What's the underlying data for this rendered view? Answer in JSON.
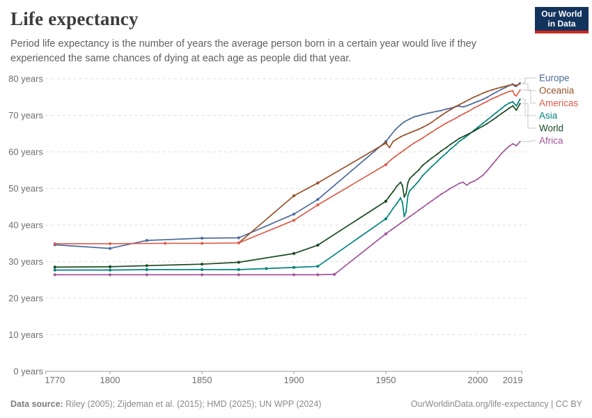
{
  "header": {
    "title": "Life expectancy",
    "subtitle": "Period life expectancy is the number of years the average person born in a certain year would live if they experienced the same chances of dying at each age as people did that year."
  },
  "logo": {
    "line1": "Our World",
    "line2": "in Data",
    "bg_color": "#12335C",
    "accent_color": "#CE261E"
  },
  "footer": {
    "source_label": "Data source:",
    "source_text": " Riley (2005); Zijdeman et al. (2015); HMD (2025); UN WPP (2024)",
    "link_text": "OurWorldinData.org/life-expectancy | CC BY"
  },
  "chart_data": {
    "type": "line",
    "title": "Life expectancy",
    "xlabel": "",
    "ylabel": "years",
    "xlim": [
      1765,
      2024
    ],
    "ylim": [
      0,
      85
    ],
    "grid": true,
    "legend_position": "right",
    "x_ticks": [
      1770,
      1800,
      1850,
      1900,
      1950,
      2000,
      2019
    ],
    "y_ticks": [
      {
        "value": 0,
        "label": "0 years"
      },
      {
        "value": 10,
        "label": "10 years"
      },
      {
        "value": 20,
        "label": "20 years"
      },
      {
        "value": 30,
        "label": "30 years"
      },
      {
        "value": 40,
        "label": "40 years"
      },
      {
        "value": 50,
        "label": "50 years"
      },
      {
        "value": 60,
        "label": "60 years"
      },
      {
        "value": 70,
        "label": "70 years"
      },
      {
        "value": 80,
        "label": "80 years"
      }
    ],
    "colors": {
      "grid": "#dedede",
      "axis": "#9a9a9a",
      "tick_label": "#6e6e6e",
      "connector": "#c8c8c8"
    },
    "series": [
      {
        "name": "Europe",
        "color": "#4C6A9C",
        "points": [
          [
            1770,
            34.6
          ],
          [
            1800,
            33.6
          ],
          [
            1820,
            35.8
          ],
          [
            1850,
            36.4
          ],
          [
            1870,
            36.5
          ],
          [
            1900,
            43.0
          ],
          [
            1913,
            47.0
          ],
          [
            1950,
            62.8
          ],
          [
            1952,
            64.1
          ],
          [
            1955,
            66.0
          ],
          [
            1958,
            67.4
          ],
          [
            1960,
            68.2
          ],
          [
            1963,
            69.0
          ],
          [
            1965,
            69.5
          ],
          [
            1968,
            69.9
          ],
          [
            1970,
            70.2
          ],
          [
            1973,
            70.6
          ],
          [
            1975,
            70.8
          ],
          [
            1978,
            71.1
          ],
          [
            1980,
            71.3
          ],
          [
            1983,
            71.7
          ],
          [
            1985,
            71.9
          ],
          [
            1988,
            72.4
          ],
          [
            1990,
            72.5
          ],
          [
            1992,
            72.3
          ],
          [
            1994,
            72.6
          ],
          [
            1996,
            73.0
          ],
          [
            1998,
            73.4
          ],
          [
            2000,
            73.8
          ],
          [
            2003,
            74.4
          ],
          [
            2005,
            74.9
          ],
          [
            2008,
            75.8
          ],
          [
            2010,
            76.3
          ],
          [
            2013,
            77.1
          ],
          [
            2015,
            77.6
          ],
          [
            2017,
            78.1
          ],
          [
            2019,
            78.6
          ],
          [
            2020,
            78.0
          ],
          [
            2021,
            77.9
          ],
          [
            2023,
            78.9
          ]
        ]
      },
      {
        "name": "Oceania",
        "color": "#9A5129",
        "points": [
          [
            1870,
            35.1
          ],
          [
            1900,
            48.0
          ],
          [
            1913,
            51.5
          ],
          [
            1950,
            62.4
          ],
          [
            1952,
            61.2
          ],
          [
            1954,
            62.9
          ],
          [
            1956,
            63.5
          ],
          [
            1958,
            64.1
          ],
          [
            1960,
            64.6
          ],
          [
            1963,
            65.2
          ],
          [
            1965,
            65.6
          ],
          [
            1968,
            66.2
          ],
          [
            1970,
            66.7
          ],
          [
            1973,
            67.5
          ],
          [
            1975,
            68.1
          ],
          [
            1978,
            69.2
          ],
          [
            1980,
            69.9
          ],
          [
            1983,
            70.9
          ],
          [
            1985,
            71.5
          ],
          [
            1988,
            72.4
          ],
          [
            1990,
            72.9
          ],
          [
            1993,
            73.7
          ],
          [
            1995,
            74.2
          ],
          [
            1998,
            75.0
          ],
          [
            2000,
            75.4
          ],
          [
            2003,
            76.1
          ],
          [
            2005,
            76.5
          ],
          [
            2008,
            77.0
          ],
          [
            2010,
            77.3
          ],
          [
            2013,
            77.7
          ],
          [
            2015,
            77.9
          ],
          [
            2017,
            78.2
          ],
          [
            2019,
            78.4
          ],
          [
            2021,
            78.2
          ],
          [
            2023,
            78.6
          ]
        ]
      },
      {
        "name": "Americas",
        "color": "#DE5C49",
        "points": [
          [
            1770,
            34.9
          ],
          [
            1800,
            34.9
          ],
          [
            1830,
            35.0
          ],
          [
            1850,
            35.0
          ],
          [
            1870,
            35.1
          ],
          [
            1900,
            41.3
          ],
          [
            1913,
            45.5
          ],
          [
            1950,
            56.5
          ],
          [
            1953,
            57.9
          ],
          [
            1955,
            58.7
          ],
          [
            1958,
            59.8
          ],
          [
            1960,
            60.5
          ],
          [
            1963,
            61.6
          ],
          [
            1965,
            62.3
          ],
          [
            1968,
            63.2
          ],
          [
            1970,
            63.8
          ],
          [
            1973,
            64.8
          ],
          [
            1975,
            65.4
          ],
          [
            1978,
            66.4
          ],
          [
            1980,
            67.0
          ],
          [
            1983,
            67.9
          ],
          [
            1985,
            68.4
          ],
          [
            1988,
            69.2
          ],
          [
            1990,
            69.8
          ],
          [
            1993,
            70.6
          ],
          [
            1995,
            71.1
          ],
          [
            1998,
            72.0
          ],
          [
            2000,
            72.5
          ],
          [
            2003,
            73.3
          ],
          [
            2005,
            73.8
          ],
          [
            2008,
            74.6
          ],
          [
            2010,
            75.0
          ],
          [
            2013,
            75.7
          ],
          [
            2015,
            76.1
          ],
          [
            2017,
            76.5
          ],
          [
            2019,
            76.7
          ],
          [
            2020,
            75.6
          ],
          [
            2021,
            75.3
          ],
          [
            2023,
            76.9
          ]
        ]
      },
      {
        "name": "Asia",
        "color": "#00847E",
        "points": [
          [
            1770,
            27.7
          ],
          [
            1800,
            27.7
          ],
          [
            1820,
            27.8
          ],
          [
            1850,
            27.8
          ],
          [
            1870,
            27.8
          ],
          [
            1885,
            28.1
          ],
          [
            1900,
            28.4
          ],
          [
            1913,
            28.7
          ],
          [
            1950,
            41.7
          ],
          [
            1952,
            43.1
          ],
          [
            1954,
            44.6
          ],
          [
            1956,
            45.9
          ],
          [
            1958,
            47.4
          ],
          [
            1959,
            46.2
          ],
          [
            1960,
            42.3
          ],
          [
            1961,
            43.6
          ],
          [
            1962,
            48.1
          ],
          [
            1963,
            49.4
          ],
          [
            1965,
            50.4
          ],
          [
            1968,
            52.1
          ],
          [
            1970,
            53.5
          ],
          [
            1973,
            55.0
          ],
          [
            1975,
            56.0
          ],
          [
            1978,
            57.4
          ],
          [
            1980,
            58.4
          ],
          [
            1983,
            59.7
          ],
          [
            1985,
            60.7
          ],
          [
            1988,
            61.9
          ],
          [
            1990,
            62.9
          ],
          [
            1993,
            63.9
          ],
          [
            1995,
            64.7
          ],
          [
            1998,
            65.9
          ],
          [
            2000,
            66.7
          ],
          [
            2003,
            67.9
          ],
          [
            2005,
            68.7
          ],
          [
            2008,
            69.9
          ],
          [
            2010,
            70.7
          ],
          [
            2013,
            71.9
          ],
          [
            2015,
            72.7
          ],
          [
            2017,
            73.3
          ],
          [
            2019,
            73.7
          ],
          [
            2021,
            72.6
          ],
          [
            2023,
            74.4
          ]
        ]
      },
      {
        "name": "World",
        "color": "#1A4B22",
        "points": [
          [
            1770,
            28.5
          ],
          [
            1800,
            28.6
          ],
          [
            1820,
            28.9
          ],
          [
            1850,
            29.3
          ],
          [
            1870,
            29.8
          ],
          [
            1900,
            32.2
          ],
          [
            1913,
            34.5
          ],
          [
            1950,
            46.5
          ],
          [
            1952,
            47.9
          ],
          [
            1954,
            49.2
          ],
          [
            1956,
            50.6
          ],
          [
            1958,
            51.7
          ],
          [
            1959,
            50.8
          ],
          [
            1960,
            47.7
          ],
          [
            1961,
            48.6
          ],
          [
            1962,
            51.6
          ],
          [
            1963,
            52.7
          ],
          [
            1965,
            53.7
          ],
          [
            1968,
            55.1
          ],
          [
            1970,
            56.3
          ],
          [
            1973,
            57.5
          ],
          [
            1975,
            58.3
          ],
          [
            1978,
            59.4
          ],
          [
            1980,
            60.2
          ],
          [
            1983,
            61.2
          ],
          [
            1985,
            62.0
          ],
          [
            1988,
            63.0
          ],
          [
            1990,
            63.7
          ],
          [
            1993,
            64.4
          ],
          [
            1995,
            64.9
          ],
          [
            1998,
            65.7
          ],
          [
            2000,
            66.3
          ],
          [
            2003,
            67.1
          ],
          [
            2005,
            67.7
          ],
          [
            2008,
            68.7
          ],
          [
            2010,
            69.4
          ],
          [
            2013,
            70.5
          ],
          [
            2015,
            71.2
          ],
          [
            2017,
            71.9
          ],
          [
            2019,
            72.6
          ],
          [
            2021,
            71.4
          ],
          [
            2023,
            73.2
          ]
        ]
      },
      {
        "name": "Africa",
        "color": "#A2559C",
        "points": [
          [
            1770,
            26.4
          ],
          [
            1800,
            26.4
          ],
          [
            1820,
            26.4
          ],
          [
            1850,
            26.4
          ],
          [
            1870,
            26.4
          ],
          [
            1900,
            26.4
          ],
          [
            1913,
            26.4
          ],
          [
            1922,
            26.5
          ],
          [
            1950,
            37.6
          ],
          [
            1953,
            38.7
          ],
          [
            1955,
            39.4
          ],
          [
            1958,
            40.5
          ],
          [
            1960,
            41.2
          ],
          [
            1963,
            42.3
          ],
          [
            1965,
            43.0
          ],
          [
            1968,
            44.1
          ],
          [
            1970,
            44.8
          ],
          [
            1973,
            45.9
          ],
          [
            1975,
            46.6
          ],
          [
            1978,
            47.7
          ],
          [
            1980,
            48.4
          ],
          [
            1983,
            49.3
          ],
          [
            1985,
            50.0
          ],
          [
            1988,
            50.8
          ],
          [
            1990,
            51.4
          ],
          [
            1992,
            51.7
          ],
          [
            1994,
            50.9
          ],
          [
            1996,
            51.6
          ],
          [
            1998,
            52.0
          ],
          [
            2000,
            52.6
          ],
          [
            2003,
            53.7
          ],
          [
            2005,
            54.8
          ],
          [
            2008,
            56.6
          ],
          [
            2010,
            57.8
          ],
          [
            2013,
            59.6
          ],
          [
            2015,
            60.6
          ],
          [
            2017,
            61.5
          ],
          [
            2019,
            62.2
          ],
          [
            2021,
            61.7
          ],
          [
            2023,
            62.8
          ]
        ]
      }
    ]
  }
}
